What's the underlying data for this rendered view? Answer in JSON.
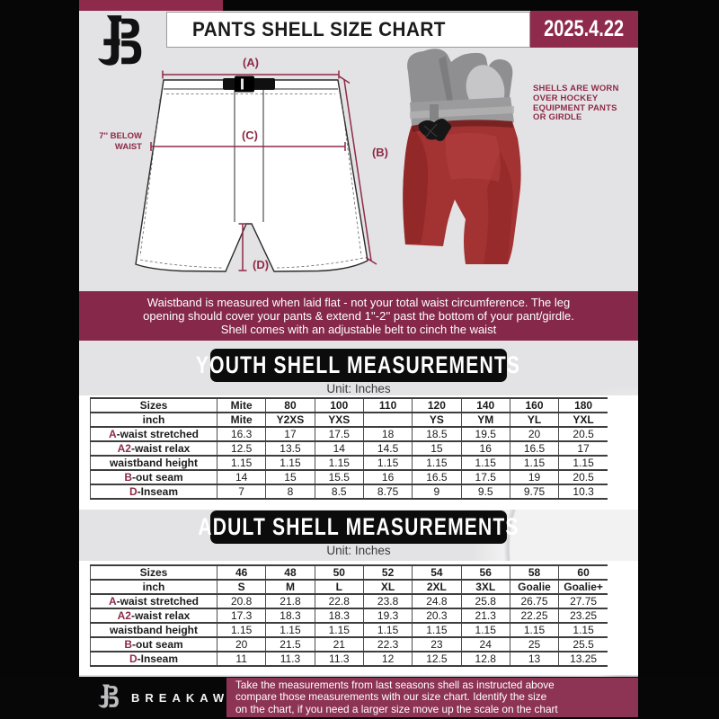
{
  "header": {
    "title": "PANTS SHELL SIZE CHART",
    "date": "2025.4.22"
  },
  "diagram": {
    "label_a": "(A)",
    "label_b": "(B)",
    "label_c": "(C)",
    "label_d": "(D)",
    "waist_note_line1": "7'' BELOW",
    "waist_note_line2": "WAIST"
  },
  "photo_caption": "SHELLS ARE WORN\nOVER HOCKEY\nEQUIPMENT PANTS\nOR GIRDLE",
  "notice_banner": "Waistband is measured when laid flat - not your total waist circumference. The leg\nopening should cover your pants & extend 1''-2'' past the bottom of your pant/girdle.\nShell comes with an adjustable belt to cinch the waist",
  "youth": {
    "banner": "YOUTH SHELL MEASUREMENTS",
    "unit": "Unit: Inches",
    "table": {
      "header": [
        "Sizes",
        "Mite",
        "80",
        "100",
        "110",
        "120",
        "140",
        "160",
        "180"
      ],
      "rows": [
        {
          "prefix": "",
          "label": "inch",
          "bold_values": true,
          "values": [
            "Mite",
            "Y2XS",
            "YXS",
            "",
            "YS",
            "YM",
            "YL",
            "YXL"
          ]
        },
        {
          "prefix": "A",
          "label": "-waist stretched",
          "values": [
            "16.3",
            "17",
            "17.5",
            "18",
            "18.5",
            "19.5",
            "20",
            "20.5"
          ]
        },
        {
          "prefix": "A2",
          "label": "-waist relax",
          "values": [
            "12.5",
            "13.5",
            "14",
            "14.5",
            "15",
            "16",
            "16.5",
            "17"
          ]
        },
        {
          "prefix": "",
          "label": "waistband height",
          "values": [
            "1.15",
            "1.15",
            "1.15",
            "1.15",
            "1.15",
            "1.15",
            "1.15",
            "1.15"
          ]
        },
        {
          "prefix": "B",
          "label": "-out seam",
          "values": [
            "14",
            "15",
            "15.5",
            "16",
            "16.5",
            "17.5",
            "19",
            "20.5"
          ]
        },
        {
          "prefix": "D",
          "label": "-Inseam",
          "values": [
            "7",
            "8",
            "8.5",
            "8.75",
            "9",
            "9.5",
            "9.75",
            "10.3"
          ]
        }
      ]
    }
  },
  "adult": {
    "banner": "ADULT SHELL MEASUREMENTS",
    "unit": "Unit: Inches",
    "table": {
      "header": [
        "Sizes",
        "46",
        "48",
        "50",
        "52",
        "54",
        "56",
        "58",
        "60"
      ],
      "rows": [
        {
          "prefix": "",
          "label": "inch",
          "bold_values": true,
          "values": [
            "S",
            "M",
            "L",
            "XL",
            "2XL",
            "3XL",
            "Goalie",
            "Goalie+"
          ]
        },
        {
          "prefix": "A",
          "label": "-waist stretched",
          "values": [
            "20.8",
            "21.8",
            "22.8",
            "23.8",
            "24.8",
            "25.8",
            "26.75",
            "27.75"
          ]
        },
        {
          "prefix": "A2",
          "label": "-waist relax",
          "values": [
            "17.3",
            "18.3",
            "18.3",
            "19.3",
            "20.3",
            "21.3",
            "22.25",
            "23.25"
          ]
        },
        {
          "prefix": "",
          "label": "waistband height",
          "values": [
            "1.15",
            "1.15",
            "1.15",
            "1.15",
            "1.15",
            "1.15",
            "1.15",
            "1.15"
          ]
        },
        {
          "prefix": "B",
          "label": "-out seam",
          "values": [
            "20",
            "21.5",
            "21",
            "22.3",
            "23",
            "24",
            "25",
            "25.5"
          ]
        },
        {
          "prefix": "D",
          "label": "-Inseam",
          "values": [
            "11",
            "11.3",
            "11.3",
            "12",
            "12.5",
            "12.8",
            "13",
            "13.25"
          ]
        }
      ]
    }
  },
  "footer": {
    "brand": "BREAKAWAY",
    "note": "Take the measurements from last seasons shell as instructed above\ncompare those measurements  with our size chart. Identify the size\non the chart, if you need a larger size move up the scale on the chart"
  },
  "colors": {
    "maroon": "#8e2b47",
    "maroon_banner": "#85284a",
    "maroon_date": "#8e2b4c",
    "maroon_footer": "#8d3354",
    "page_gray": "#e3e3e5",
    "black": "#060606",
    "shell_red": "#a33232"
  }
}
